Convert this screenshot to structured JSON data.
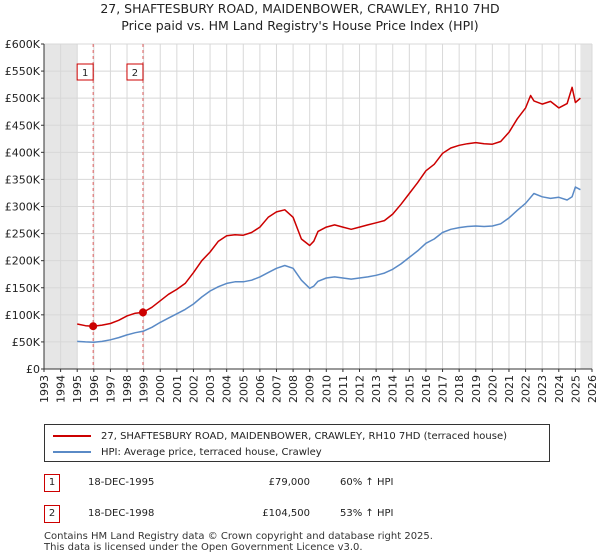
{
  "chart_data": {
    "type": "line",
    "title": "27, SHAFTESBURY ROAD, MAIDENBOWER, CRAWLEY, RH10 7HD",
    "subtitle": "Price paid vs. HM Land Registry's House Price Index (HPI)",
    "xlabel": "",
    "ylabel": "",
    "xlim": [
      1993,
      2026
    ],
    "ylim": [
      0,
      600000
    ],
    "x_ticks": [
      "1993",
      "1994",
      "1995",
      "1996",
      "1997",
      "1998",
      "1999",
      "2000",
      "2001",
      "2002",
      "2003",
      "2004",
      "2005",
      "2006",
      "2007",
      "2008",
      "2009",
      "2010",
      "2011",
      "2012",
      "2013",
      "2014",
      "2015",
      "2016",
      "2017",
      "2018",
      "2019",
      "2020",
      "2021",
      "2022",
      "2023",
      "2024",
      "2025",
      "2026"
    ],
    "y_ticks": [
      {
        "value": 0,
        "label": "£0"
      },
      {
        "value": 50000,
        "label": "£50K"
      },
      {
        "value": 100000,
        "label": "£100K"
      },
      {
        "value": 150000,
        "label": "£150K"
      },
      {
        "value": 200000,
        "label": "£200K"
      },
      {
        "value": 250000,
        "label": "£250K"
      },
      {
        "value": 300000,
        "label": "£300K"
      },
      {
        "value": 350000,
        "label": "£350K"
      },
      {
        "value": 400000,
        "label": "£400K"
      },
      {
        "value": 450000,
        "label": "£450K"
      },
      {
        "value": 500000,
        "label": "£500K"
      },
      {
        "value": 550000,
        "label": "£550K"
      },
      {
        "value": 600000,
        "label": "£600K"
      }
    ],
    "grid": true,
    "shaded_ranges": [
      [
        1993,
        1995
      ],
      [
        2025.3,
        2026
      ]
    ],
    "series": [
      {
        "name": "27, SHAFTESBURY ROAD, MAIDENBOWER, CRAWLEY, RH10 7HD (terraced house)",
        "color": "#cc0000",
        "x": [
          1995.0,
          1995.5,
          1995.96,
          1996.5,
          1997.0,
          1997.5,
          1998.0,
          1998.5,
          1998.96,
          1999.5,
          2000.0,
          2000.5,
          2001.0,
          2001.5,
          2002.0,
          2002.5,
          2003.0,
          2003.5,
          2004.0,
          2004.5,
          2005.0,
          2005.5,
          2006.0,
          2006.5,
          2007.0,
          2007.5,
          2008.0,
          2008.5,
          2009.0,
          2009.25,
          2009.5,
          2010.0,
          2010.5,
          2011.0,
          2011.5,
          2012.0,
          2012.5,
          2013.0,
          2013.5,
          2014.0,
          2014.5,
          2015.0,
          2015.5,
          2016.0,
          2016.5,
          2017.0,
          2017.5,
          2018.0,
          2018.5,
          2019.0,
          2019.5,
          2020.0,
          2020.5,
          2021.0,
          2021.5,
          2022.0,
          2022.3,
          2022.5,
          2023.0,
          2023.5,
          2024.0,
          2024.5,
          2024.8,
          2025.0,
          2025.3
        ],
        "y": [
          83000,
          80000,
          79000,
          81000,
          84000,
          90000,
          98000,
          103000,
          104500,
          114000,
          126000,
          138000,
          147000,
          158000,
          178000,
          200000,
          216000,
          236000,
          246000,
          248000,
          247000,
          252000,
          262000,
          280000,
          290000,
          294000,
          280000,
          240000,
          228000,
          236000,
          254000,
          262000,
          266000,
          262000,
          258000,
          262000,
          266000,
          270000,
          274000,
          286000,
          304000,
          324000,
          344000,
          366000,
          378000,
          398000,
          408000,
          413000,
          416000,
          418000,
          416000,
          415000,
          420000,
          437000,
          462000,
          482000,
          505000,
          495000,
          489000,
          494000,
          482000,
          490000,
          520000,
          492000,
          500000
        ]
      },
      {
        "name": "HPI: Average price, terraced house, Crawley",
        "color": "#5a8ac6",
        "x": [
          1995.0,
          1995.5,
          1996.0,
          1996.5,
          1997.0,
          1997.5,
          1998.0,
          1998.5,
          1999.0,
          1999.5,
          2000.0,
          2000.5,
          2001.0,
          2001.5,
          2002.0,
          2002.5,
          2003.0,
          2003.5,
          2004.0,
          2004.5,
          2005.0,
          2005.5,
          2006.0,
          2006.5,
          2007.0,
          2007.5,
          2008.0,
          2008.5,
          2009.0,
          2009.25,
          2009.5,
          2010.0,
          2010.5,
          2011.0,
          2011.5,
          2012.0,
          2012.5,
          2013.0,
          2013.5,
          2014.0,
          2014.5,
          2015.0,
          2015.5,
          2016.0,
          2016.5,
          2017.0,
          2017.5,
          2018.0,
          2018.5,
          2019.0,
          2019.5,
          2020.0,
          2020.5,
          2021.0,
          2021.5,
          2022.0,
          2022.5,
          2023.0,
          2023.5,
          2024.0,
          2024.5,
          2024.8,
          2025.0,
          2025.3
        ],
        "y": [
          51000,
          50000,
          49500,
          51000,
          54000,
          58000,
          63000,
          67000,
          70000,
          77000,
          86000,
          94000,
          102000,
          110000,
          120000,
          133000,
          144000,
          152000,
          158000,
          161000,
          161000,
          164000,
          170000,
          178000,
          186000,
          191000,
          186000,
          164000,
          149000,
          153000,
          162000,
          168000,
          170000,
          168000,
          166000,
          168000,
          170000,
          173000,
          177000,
          184000,
          194000,
          206000,
          218000,
          232000,
          240000,
          252000,
          258000,
          261000,
          263000,
          264000,
          263000,
          264000,
          268000,
          279000,
          293000,
          306000,
          324000,
          318000,
          315000,
          317000,
          312000,
          318000,
          336000,
          331000
        ]
      }
    ],
    "annotations": [
      {
        "label": "1",
        "x": 1995.96,
        "y": 79000
      },
      {
        "label": "2",
        "x": 1998.96,
        "y": 104500
      }
    ]
  },
  "legend": {
    "items": [
      {
        "label": "27, SHAFTESBURY ROAD, MAIDENBOWER, CRAWLEY, RH10 7HD (terraced house)",
        "color": "#cc0000"
      },
      {
        "label": "HPI: Average price, terraced house, Crawley",
        "color": "#5a8ac6"
      }
    ]
  },
  "transactions": [
    {
      "label": "1",
      "date": "18-DEC-1995",
      "price": "£79,000",
      "hpi": "60% ↑ HPI"
    },
    {
      "label": "2",
      "date": "18-DEC-1998",
      "price": "£104,500",
      "hpi": "53% ↑ HPI"
    }
  ],
  "footer": {
    "line1": "Contains HM Land Registry data © Crown copyright and database right 2025.",
    "line2": "This data is licensed under the Open Government Licence v3.0."
  }
}
